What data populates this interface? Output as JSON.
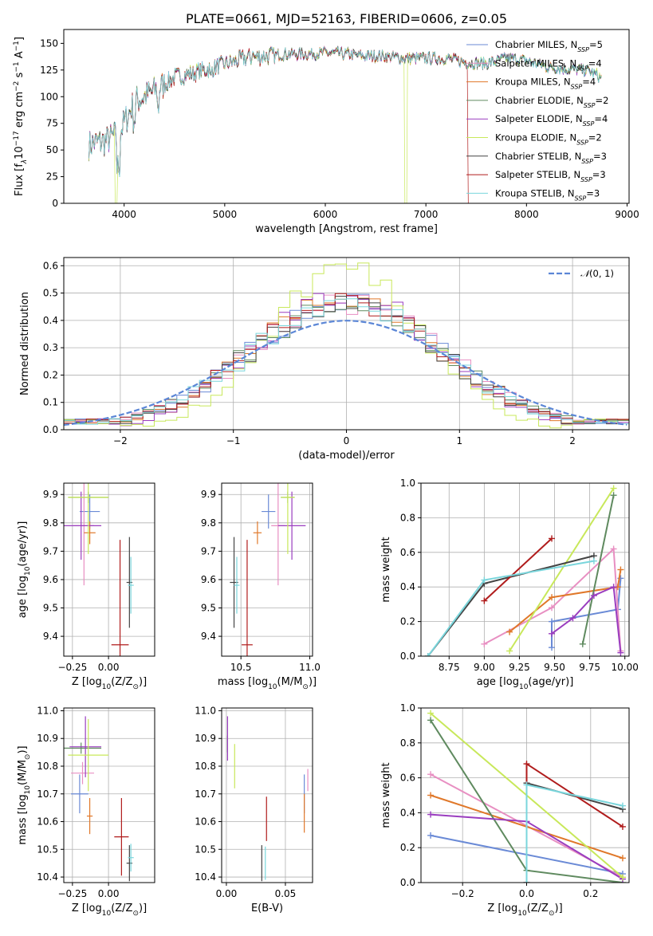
{
  "chart_data": [
    {
      "id": "spectrum",
      "type": "line",
      "title": "PLATE=0661, MJD=52163, FIBERID=0606, z=0.05",
      "xlabel": "wavelength [Angstrom, rest frame]",
      "ylabel_parts": [
        "Flux [f",
        "λ",
        "10",
        "−17",
        " erg cm",
        "−2",
        " s",
        "−1",
        " A",
        "−1",
        "]"
      ],
      "xlim": [
        3400,
        9020
      ],
      "ylim": [
        0,
        163
      ],
      "xticks": [
        4000,
        5000,
        6000,
        7000,
        8000,
        9000
      ],
      "yticks": [
        0,
        25,
        50,
        75,
        100,
        125,
        150
      ],
      "grid": false,
      "legend": "top-right",
      "models": [
        {
          "base": "Chabrier MILES, N",
          "sub": "SSP",
          "n": "=5",
          "color": "#6a8ad6"
        },
        {
          "base": "Salpeter MILES, N",
          "sub": "SSP",
          "n": "=4",
          "color": "#e88fc2"
        },
        {
          "base": "Kroupa MILES, N",
          "sub": "SSP",
          "n": "=4",
          "color": "#e0782a"
        },
        {
          "base": "Chabrier ELODIE, N",
          "sub": "SSP",
          "n": "=2",
          "color": "#5f8a5f"
        },
        {
          "base": "Salpeter ELODIE, N",
          "sub": "SSP",
          "n": "=4",
          "color": "#9a3dbf"
        },
        {
          "base": "Kroupa ELODIE, N",
          "sub": "SSP",
          "n": "=2",
          "color": "#c8e85a"
        },
        {
          "base": "Chabrier STELIB, N",
          "sub": "SSP",
          "n": "=3",
          "color": "#444444"
        },
        {
          "base": "Salpeter STELIB, N",
          "sub": "SSP",
          "n": "=3",
          "color": "#b01c1c"
        },
        {
          "base": "Kroupa STELIB, N",
          "sub": "SSP",
          "n": "=3",
          "color": "#7ad6dc"
        }
      ],
      "continuum": {
        "x": [
          3650,
          3800,
          3950,
          4100,
          4300,
          4500,
          4800,
          5000,
          5200,
          5400,
          5600,
          5800,
          6000,
          6200,
          6400,
          6600,
          6800,
          7000,
          7200,
          7400,
          7600,
          7800,
          8000,
          8200,
          8400,
          8600,
          8750
        ],
        "y": [
          55,
          58,
          65,
          95,
          105,
          118,
          125,
          130,
          136,
          138,
          140,
          140,
          141,
          140,
          138,
          138,
          136,
          136,
          136,
          132,
          131,
          136,
          134,
          128,
          126,
          125,
          118
        ]
      },
      "cutoffs": [
        {
          "model": 5,
          "x": 3920
        },
        {
          "model": 5,
          "x": 6800
        },
        {
          "model": 7,
          "x": 7420
        }
      ]
    },
    {
      "id": "residuals",
      "type": "histogram",
      "xlabel": "(data-model)/error",
      "ylabel": "Normed distribution",
      "xlim": [
        -2.5,
        2.5
      ],
      "ylim": [
        0,
        0.63
      ],
      "xticks": [
        -2,
        -1,
        0,
        1,
        2
      ],
      "yticks": [
        0.0,
        0.1,
        0.2,
        0.3,
        0.4,
        0.5,
        0.6
      ],
      "grid": true,
      "legend": "top-right",
      "reference_label": "(0, 1)",
      "reference_color": "#5b86d6",
      "bin_width": 0.1,
      "peak_by_model": [
        0.47,
        0.46,
        0.49,
        0.45,
        0.5,
        0.6,
        0.47,
        0.46,
        0.47
      ]
    },
    {
      "id": "age-vs-Z",
      "type": "errorbar",
      "xlabel_parts": [
        "Z [log",
        "10",
        "(Z/Z",
        "⊙",
        ")]"
      ],
      "ylabel_parts": [
        "age  [log",
        "10",
        "(age/yr)]"
      ],
      "xlim": [
        -0.31,
        0.32
      ],
      "ylim": [
        9.33,
        9.94
      ],
      "xticks": [
        -0.25,
        0.0
      ],
      "yticks": [
        9.4,
        9.5,
        9.6,
        9.7,
        9.8,
        9.9
      ],
      "grid": true,
      "points": [
        {
          "model": 0,
          "x": -0.13,
          "y": 9.84,
          "xerr": 0.07,
          "yerr": 0.06
        },
        {
          "model": 1,
          "x": -0.17,
          "y": 9.79,
          "xerr": 0.07,
          "yerr": 0.21
        },
        {
          "model": 2,
          "x": -0.13,
          "y": 9.765,
          "xerr": 0.04,
          "yerr": 0.04
        },
        {
          "model": 3,
          "x": -0.14,
          "y": 9.89,
          "xerr": 0.14,
          "yerr": 0.02
        },
        {
          "model": 4,
          "x": -0.19,
          "y": 9.79,
          "xerr": 0.14,
          "yerr": 0.12
        },
        {
          "model": 5,
          "x": -0.14,
          "y": 9.89,
          "xerr": 0.14,
          "yerr": 0.2
        },
        {
          "model": 6,
          "x": 0.145,
          "y": 9.59,
          "xerr": 0.02,
          "yerr": 0.16
        },
        {
          "model": 7,
          "x": 0.08,
          "y": 9.37,
          "xerr": 0.06,
          "yerr": 0.37
        },
        {
          "model": 8,
          "x": 0.155,
          "y": 9.58,
          "xerr": 0.02,
          "yerr": 0.1
        }
      ]
    },
    {
      "id": "age-vs-mass",
      "type": "errorbar",
      "xlabel_parts": [
        "mass [log",
        "10",
        "(M/M",
        "⊙",
        ")]"
      ],
      "ylabel": "",
      "xlim": [
        10.36,
        11.02
      ],
      "ylim": [
        9.33,
        9.94
      ],
      "xticks": [
        10.5,
        11.0
      ],
      "yticks": [
        9.4,
        9.5,
        9.6,
        9.7,
        9.8,
        9.9
      ],
      "grid": true,
      "points": [
        {
          "model": 0,
          "x": 10.7,
          "y": 9.84,
          "xerr": 0.05,
          "yerr": 0.06
        },
        {
          "model": 1,
          "x": 10.77,
          "y": 9.79,
          "xerr": 0.05,
          "yerr": 0.21
        },
        {
          "model": 2,
          "x": 10.62,
          "y": 9.765,
          "xerr": 0.03,
          "yerr": 0.04
        },
        {
          "model": 3,
          "x": 10.84,
          "y": 9.89,
          "xerr": 0.05,
          "yerr": 0.02
        },
        {
          "model": 4,
          "x": 10.87,
          "y": 9.79,
          "xerr": 0.1,
          "yerr": 0.12
        },
        {
          "model": 5,
          "x": 10.84,
          "y": 9.89,
          "xerr": 0.05,
          "yerr": 0.2
        },
        {
          "model": 6,
          "x": 10.45,
          "y": 9.59,
          "xerr": 0.03,
          "yerr": 0.16
        },
        {
          "model": 7,
          "x": 10.545,
          "y": 9.37,
          "xerr": 0.04,
          "yerr": 0.37
        },
        {
          "model": 8,
          "x": 10.47,
          "y": 9.58,
          "xerr": 0.02,
          "yerr": 0.1
        }
      ]
    },
    {
      "id": "weight-vs-age",
      "type": "line",
      "xlabel_parts": [
        "age  [log",
        "10",
        "(age/yr)]"
      ],
      "ylabel": "mass weight",
      "xlim": [
        8.55,
        10.03
      ],
      "ylim": [
        0,
        1
      ],
      "xticks": [
        8.75,
        9.0,
        9.25,
        9.5,
        9.75,
        10.0
      ],
      "yticks": [
        0.0,
        0.2,
        0.4,
        0.6,
        0.8,
        1.0
      ],
      "grid": true,
      "series": [
        {
          "model": 0,
          "x": [
            9.48,
            9.48,
            9.95,
            9.97
          ],
          "y": [
            0.05,
            0.2,
            0.27,
            0.45
          ]
        },
        {
          "model": 1,
          "x": [
            9.0,
            9.48,
            9.92,
            9.97
          ],
          "y": [
            0.07,
            0.28,
            0.62,
            0.03
          ]
        },
        {
          "model": 2,
          "x": [
            9.18,
            9.48,
            9.95,
            9.97
          ],
          "y": [
            0.14,
            0.34,
            0.4,
            0.5
          ]
        },
        {
          "model": 3,
          "x": [
            9.7,
            9.92
          ],
          "y": [
            0.07,
            0.93
          ]
        },
        {
          "model": 4,
          "x": [
            9.48,
            9.63,
            9.78,
            9.92,
            9.97
          ],
          "y": [
            0.13,
            0.22,
            0.35,
            0.4,
            0.02
          ]
        },
        {
          "model": 5,
          "x": [
            9.18,
            9.92
          ],
          "y": [
            0.03,
            0.97
          ]
        },
        {
          "model": 6,
          "x": [
            8.6,
            9.0,
            9.78
          ],
          "y": [
            0.0,
            0.42,
            0.58
          ]
        },
        {
          "model": 7,
          "x": [
            9.0,
            9.48
          ],
          "y": [
            0.32,
            0.68
          ]
        },
        {
          "model": 8,
          "x": [
            8.6,
            9.0,
            9.78
          ],
          "y": [
            0.0,
            0.44,
            0.55
          ]
        }
      ]
    },
    {
      "id": "mass-vs-Z",
      "type": "errorbar",
      "xlabel_parts": [
        "Z [log",
        "10",
        "(Z/Z",
        "⊙",
        ")]"
      ],
      "ylabel_parts": [
        "mass [log",
        "10",
        "(M/M",
        "⊙",
        ")]"
      ],
      "xlim": [
        -0.31,
        0.32
      ],
      "ylim": [
        10.38,
        11.01
      ],
      "xticks": [
        -0.25,
        0.0
      ],
      "yticks": [
        10.4,
        10.5,
        10.6,
        10.7,
        10.8,
        10.9,
        11.0
      ],
      "grid": true,
      "points": [
        {
          "model": 0,
          "x": -0.2,
          "y": 10.7,
          "xerr": 0.06,
          "yerr": 0.07
        },
        {
          "model": 1,
          "x": -0.18,
          "y": 10.775,
          "xerr": 0.08,
          "yerr": 0.04
        },
        {
          "model": 2,
          "x": -0.13,
          "y": 10.62,
          "xerr": 0.02,
          "yerr": 0.065
        },
        {
          "model": 3,
          "x": -0.19,
          "y": 10.865,
          "xerr": 0.14,
          "yerr": 0.02
        },
        {
          "model": 4,
          "x": -0.16,
          "y": 10.87,
          "xerr": 0.11,
          "yerr": 0.11
        },
        {
          "model": 5,
          "x": -0.14,
          "y": 10.84,
          "xerr": 0.14,
          "yerr": 0.13
        },
        {
          "model": 6,
          "x": 0.145,
          "y": 10.45,
          "xerr": 0.02,
          "yerr": 0.065
        },
        {
          "model": 7,
          "x": 0.09,
          "y": 10.545,
          "xerr": 0.05,
          "yerr": 0.14
        },
        {
          "model": 8,
          "x": 0.155,
          "y": 10.47,
          "xerr": 0.02,
          "yerr": 0.05
        }
      ]
    },
    {
      "id": "mass-vs-EBV",
      "type": "errorbar",
      "xlabel": "E(B-V)",
      "ylabel": "",
      "xlim": [
        -0.004,
        0.073
      ],
      "ylim": [
        10.38,
        11.01
      ],
      "xticks": [
        0.0,
        0.05
      ],
      "yticks": [
        10.4,
        10.5,
        10.6,
        10.7,
        10.8,
        10.9,
        11.0
      ],
      "grid": true,
      "points": [
        {
          "model": 0,
          "x": 0.066,
          "y": 10.7,
          "xerr": 0,
          "yerr": 0.07
        },
        {
          "model": 1,
          "x": 0.069,
          "y": 10.75,
          "xerr": 0,
          "yerr": 0.04
        },
        {
          "model": 2,
          "x": 0.066,
          "y": 10.63,
          "xerr": 0,
          "yerr": 0.07
        },
        {
          "model": 3,
          "x": 0.001,
          "y": 10.88,
          "xerr": 0,
          "yerr": 0.03
        },
        {
          "model": 4,
          "x": 0.001,
          "y": 10.9,
          "xerr": 0,
          "yerr": 0.08
        },
        {
          "model": 5,
          "x": 0.007,
          "y": 10.8,
          "xerr": 0,
          "yerr": 0.08
        },
        {
          "model": 6,
          "x": 0.03,
          "y": 10.45,
          "xerr": 0,
          "yerr": 0.065
        },
        {
          "model": 7,
          "x": 0.034,
          "y": 10.61,
          "xerr": 0,
          "yerr": 0.08
        },
        {
          "model": 8,
          "x": 0.033,
          "y": 10.45,
          "xerr": 0,
          "yerr": 0.06
        }
      ]
    },
    {
      "id": "weight-vs-Z",
      "type": "line",
      "xlabel_parts": [
        "Z [log",
        "10",
        "(Z/Z",
        "⊙",
        ")]"
      ],
      "ylabel": "mass weight",
      "xlim": [
        -0.33,
        0.32
      ],
      "ylim": [
        0,
        1
      ],
      "xticks": [
        -0.2,
        0.0,
        0.2
      ],
      "yticks": [
        0.0,
        0.2,
        0.4,
        0.6,
        0.8,
        1.0
      ],
      "grid": true,
      "series": [
        {
          "model": 0,
          "x": [
            -0.3,
            0.3
          ],
          "y": [
            0.27,
            0.05
          ]
        },
        {
          "model": 1,
          "x": [
            -0.3,
            0.3
          ],
          "y": [
            0.62,
            0.03
          ]
        },
        {
          "model": 2,
          "x": [
            -0.3,
            0.3
          ],
          "y": [
            0.5,
            0.14
          ]
        },
        {
          "model": 3,
          "x": [
            -0.3,
            0.0,
            0.3
          ],
          "y": [
            0.93,
            0.07,
            0.0
          ]
        },
        {
          "model": 4,
          "x": [
            -0.3,
            0.0,
            0.3
          ],
          "y": [
            0.39,
            0.35,
            0.02
          ]
        },
        {
          "model": 5,
          "x": [
            -0.3,
            0.3
          ],
          "y": [
            0.97,
            0.03
          ]
        },
        {
          "model": 6,
          "x": [
            0.0,
            0.0,
            0.3
          ],
          "y": [
            0.0,
            0.57,
            0.42
          ]
        },
        {
          "model": 7,
          "x": [
            0.0,
            0.0,
            0.3
          ],
          "y": [
            0.0,
            0.68,
            0.32
          ]
        },
        {
          "model": 8,
          "x": [
            0.0,
            0.0,
            0.3
          ],
          "y": [
            0.0,
            0.56,
            0.44
          ]
        }
      ]
    }
  ]
}
